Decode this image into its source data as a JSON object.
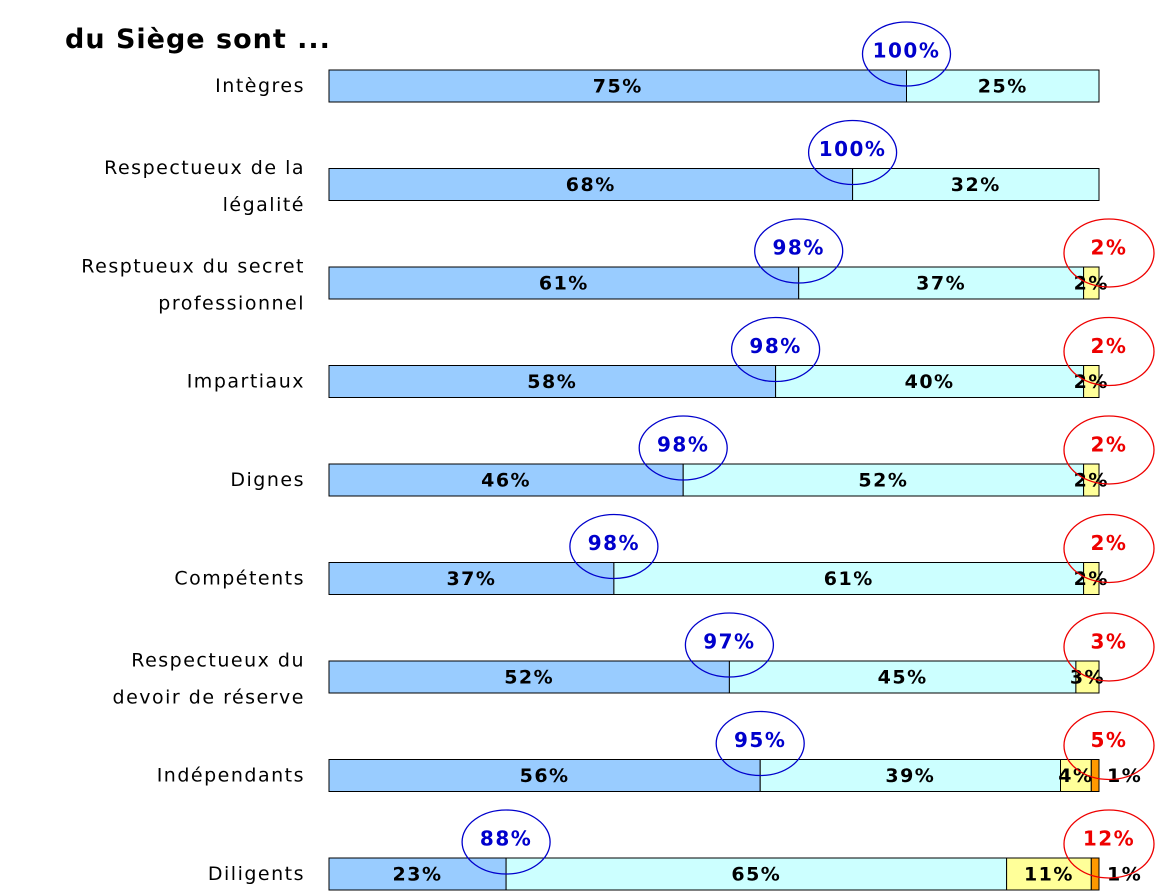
{
  "chart_data": {
    "type": "stacked_bar_horizontal",
    "title": "du Siège sont ...",
    "categories": [
      "Intègres",
      "Respectueux de la\nlégalité",
      "Resptueux du secret\nprofessionnel",
      "Impartiaux",
      "Dignes",
      "Compétents",
      "Respectueux du\ndevoir de réserve",
      "Indépendants",
      "Diligents"
    ],
    "xlim": [
      0,
      100
    ],
    "series": [
      {
        "color": "#99ccff",
        "values": [
          75,
          68,
          61,
          58,
          46,
          37,
          52,
          56,
          23
        ],
        "value_labels": [
          "75%",
          "68%",
          "61%",
          "58%",
          "46%",
          "37%",
          "52%",
          "56%",
          "23%"
        ]
      },
      {
        "color": "#ccffff",
        "values": [
          25,
          32,
          37,
          40,
          52,
          61,
          45,
          39,
          65
        ],
        "value_labels": [
          "25%",
          "32%",
          "37%",
          "40%",
          "52%",
          "61%",
          "45%",
          "39%",
          "65%"
        ]
      },
      {
        "color": "#ffff99",
        "values": [
          null,
          null,
          2,
          2,
          2,
          2,
          3,
          4,
          11
        ],
        "value_labels": [
          null,
          null,
          "2%",
          "2%",
          "2%",
          "2%",
          "3%",
          "4%",
          "11%"
        ]
      },
      {
        "color": "#ff9900",
        "values": [
          null,
          null,
          null,
          null,
          null,
          null,
          null,
          1,
          1
        ],
        "value_labels": [
          null,
          null,
          null,
          null,
          null,
          null,
          null,
          "1%",
          "1%"
        ]
      }
    ],
    "positive_totals": {
      "color": "#0000cc",
      "values": [
        100,
        100,
        98,
        98,
        98,
        98,
        97,
        95,
        88
      ],
      "value_labels": [
        "100%",
        "100%",
        "98%",
        "98%",
        "98%",
        "98%",
        "97%",
        "95%",
        "88%"
      ]
    },
    "negative_totals": {
      "color": "#ee0000",
      "values": [
        null,
        null,
        2,
        2,
        2,
        2,
        3,
        5,
        12
      ],
      "value_labels": [
        null,
        null,
        "2%",
        "2%",
        "2%",
        "2%",
        "3%",
        "5%",
        "12%"
      ]
    }
  }
}
